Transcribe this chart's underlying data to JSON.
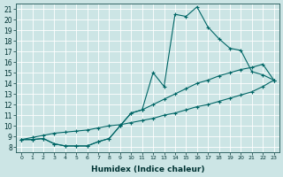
{
  "xlabel": "Humidex (Indice chaleur)",
  "ylabel": "",
  "bg_color": "#cce5e5",
  "line_color": "#006666",
  "xlim": [
    -0.5,
    23.5
  ],
  "ylim": [
    7.5,
    21.5
  ],
  "xticks": [
    0,
    1,
    2,
    3,
    4,
    5,
    6,
    7,
    8,
    9,
    10,
    11,
    12,
    13,
    14,
    15,
    16,
    17,
    18,
    19,
    20,
    21,
    22,
    23
  ],
  "yticks": [
    8,
    9,
    10,
    11,
    12,
    13,
    14,
    15,
    16,
    17,
    18,
    19,
    20,
    21
  ],
  "line1_x": [
    0,
    1,
    2,
    3,
    4,
    5,
    6,
    7,
    8,
    9,
    10,
    11,
    12,
    13,
    14,
    15,
    16,
    17,
    18,
    19,
    20,
    21,
    22,
    23
  ],
  "line1_y": [
    8.7,
    8.7,
    8.8,
    8.3,
    8.1,
    8.1,
    8.1,
    8.5,
    8.8,
    10.0,
    11.2,
    11.5,
    15.0,
    13.7,
    20.5,
    20.3,
    21.2,
    19.3,
    18.2,
    17.3,
    17.1,
    15.1,
    14.8,
    14.3
  ],
  "line2_x": [
    0,
    1,
    2,
    3,
    4,
    5,
    6,
    7,
    8,
    9,
    10,
    11,
    12,
    13,
    14,
    15,
    16,
    17,
    18,
    19,
    20,
    21,
    22,
    23
  ],
  "line2_y": [
    8.7,
    8.7,
    8.8,
    8.3,
    8.1,
    8.1,
    8.1,
    8.5,
    8.8,
    10.0,
    11.2,
    11.5,
    12.0,
    12.5,
    13.0,
    13.5,
    14.0,
    14.3,
    14.7,
    15.0,
    15.3,
    15.5,
    15.8,
    14.3
  ],
  "line3_x": [
    0,
    1,
    2,
    3,
    4,
    5,
    6,
    7,
    8,
    9,
    10,
    11,
    12,
    13,
    14,
    15,
    16,
    17,
    18,
    19,
    20,
    21,
    22,
    23
  ],
  "line3_y": [
    8.7,
    8.9,
    9.1,
    9.3,
    9.4,
    9.5,
    9.6,
    9.8,
    10.0,
    10.1,
    10.3,
    10.5,
    10.7,
    11.0,
    11.2,
    11.5,
    11.8,
    12.0,
    12.3,
    12.6,
    12.9,
    13.2,
    13.7,
    14.3
  ]
}
